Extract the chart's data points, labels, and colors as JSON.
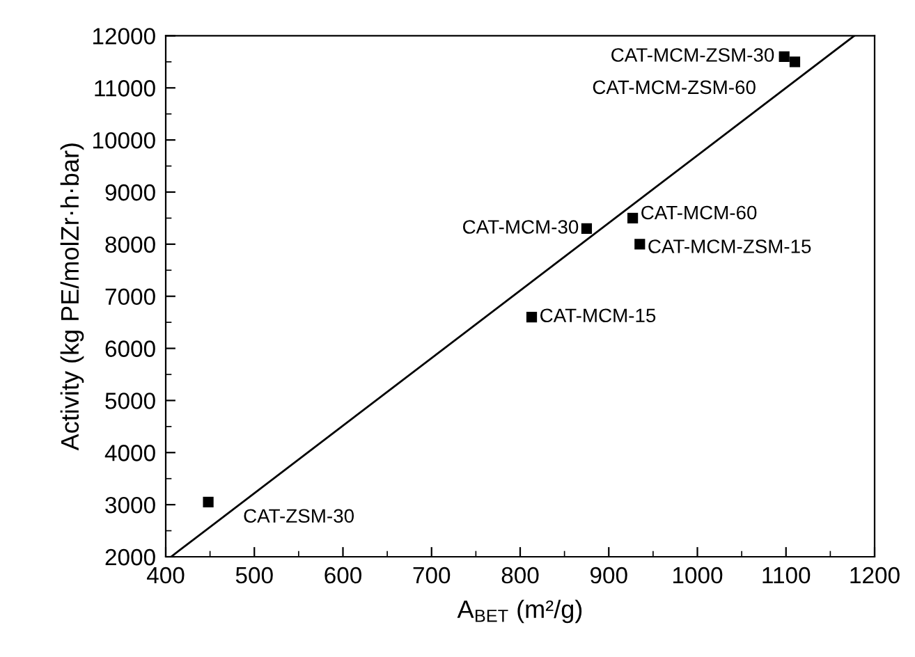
{
  "chart_data": {
    "type": "scatter",
    "xlabel": "A$_{BET}$ (m²/g)",
    "ylabel": "Activity (kg PE/molZr·h·bar)",
    "series": [
      {
        "color": "#000000",
        "marker": "square",
        "x": [
          448,
          813,
          875,
          927,
          935,
          1098,
          1110
        ],
        "values": [
          3050,
          6600,
          8300,
          8500,
          8000,
          11600,
          11500
        ]
      },
      {
        "type": "line",
        "color": "#000000",
        "marker": "none",
        "line_style": "solid",
        "x": [
          406,
          1177
        ],
        "values": [
          2000,
          12000
        ]
      }
    ],
    "annotations": [
      {
        "text": "CAT-ZSM-30",
        "x": 448,
        "y": 3050
      },
      {
        "text": "CAT-MCM-15",
        "x": 813,
        "y": 6600
      },
      {
        "text": "CAT-MCM-30",
        "x": 875,
        "y": 8300
      },
      {
        "text": "CAT-MCM-60",
        "x": 927,
        "y": 8500
      },
      {
        "text": "CAT-MCM-ZSM-15",
        "x": 935,
        "y": 8000
      },
      {
        "text": "CAT-MCM-ZSM-30",
        "x": 1098,
        "y": 11600
      },
      {
        "text": "CAT-MCM-ZSM-60",
        "x": 1110,
        "y": 11500
      }
    ],
    "xlim": [
      400,
      1200
    ],
    "xticks": [
      400,
      500,
      600,
      700,
      800,
      900,
      1000,
      1100,
      1200
    ],
    "ylim": [
      2000,
      12000
    ],
    "yticks": [
      2000,
      3000,
      4000,
      5000,
      6000,
      7000,
      8000,
      9000,
      10000,
      11000,
      12000
    ],
    "grid": false,
    "legend": false
  }
}
